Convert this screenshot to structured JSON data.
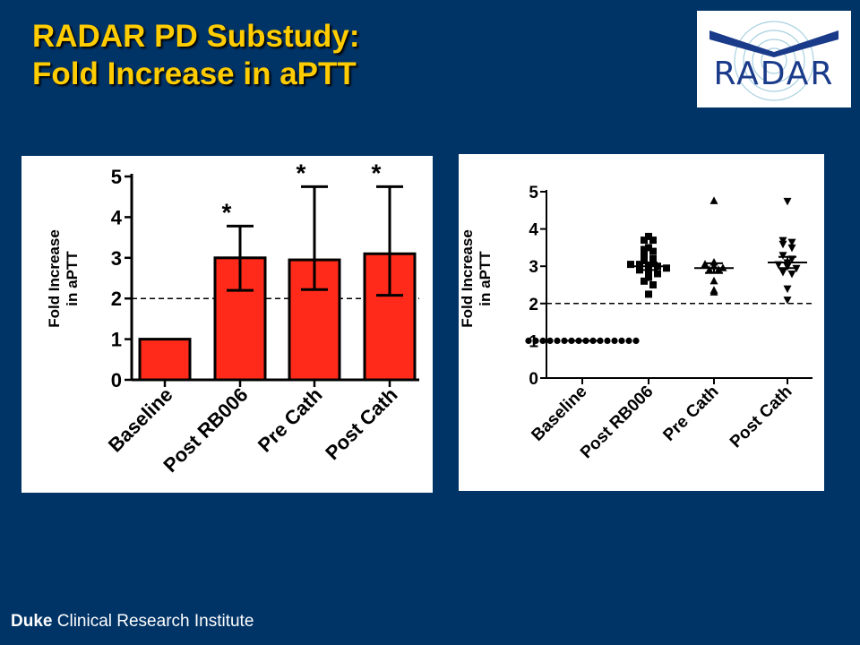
{
  "slide": {
    "title_line1": "RADAR PD Substudy:",
    "title_line2": "Fold Increase in aPTT",
    "footer_bold": "Duke",
    "footer_rest": "Clinical Research Institute"
  },
  "logo": {
    "text": "RADAR",
    "color": "#1a3a8a",
    "ring_color": "#a8d0e0"
  },
  "colors": {
    "background": "#003366",
    "title": "#FFCC00",
    "bar_fill": "#FF2A1A",
    "ink": "#000000"
  },
  "chart_data": [
    {
      "type": "bar",
      "categories": [
        "Baseline",
        "Post RB006",
        "Pre Cath",
        "Post Cath"
      ],
      "values": [
        1.0,
        3.0,
        2.95,
        3.1
      ],
      "error_upper": [
        1.0,
        3.78,
        4.75,
        4.75
      ],
      "error_lower": [
        1.0,
        2.2,
        2.22,
        2.08
      ],
      "significance": [
        "",
        "*",
        "*",
        "*"
      ],
      "ylabel_line1": "Fold Increase",
      "ylabel_line2": "in aPTT",
      "ylim": [
        0,
        5
      ],
      "yticks": [
        "0",
        "1",
        "2",
        "3",
        "4",
        "5"
      ],
      "reference_line": 2,
      "grid": false
    },
    {
      "type": "scatter",
      "categories": [
        "Baseline",
        "Post RB006",
        "Pre Cath",
        "Post Cath"
      ],
      "ylabel_line1": "Fold Increase",
      "ylabel_line2": "in aPTT",
      "ylim": [
        0,
        5
      ],
      "yticks": [
        "0",
        "1",
        "2",
        "3",
        "4",
        "5"
      ],
      "reference_line": 2,
      "grid": false,
      "series": [
        {
          "marker": "circle",
          "mean": 1.0,
          "sem": 0.0,
          "values": [
            1,
            1,
            1,
            1,
            1,
            1,
            1,
            1,
            1,
            1,
            1,
            1,
            1,
            1,
            1,
            1
          ]
        },
        {
          "marker": "square",
          "mean": 3.0,
          "sem": 0.1,
          "values": [
            3.8,
            3.7,
            3.7,
            3.5,
            3.45,
            3.4,
            3.3,
            3.2,
            3.15,
            3.1,
            3.05,
            3.05,
            3.0,
            3.0,
            2.95,
            2.9,
            2.85,
            2.8,
            2.7,
            2.6,
            2.5,
            2.25
          ]
        },
        {
          "marker": "triangle-up",
          "mean": 2.95,
          "sem": 0.13,
          "values": [
            4.75,
            3.1,
            3.05,
            3.0,
            2.95,
            2.9,
            2.9,
            2.6,
            2.35,
            2.3
          ]
        },
        {
          "marker": "triangle-down",
          "mean": 3.1,
          "sem": 0.15,
          "values": [
            4.75,
            3.7,
            3.65,
            3.6,
            3.5,
            3.3,
            3.2,
            3.1,
            3.05,
            3.0,
            2.95,
            2.85,
            2.8,
            2.4,
            2.1
          ]
        }
      ]
    }
  ]
}
